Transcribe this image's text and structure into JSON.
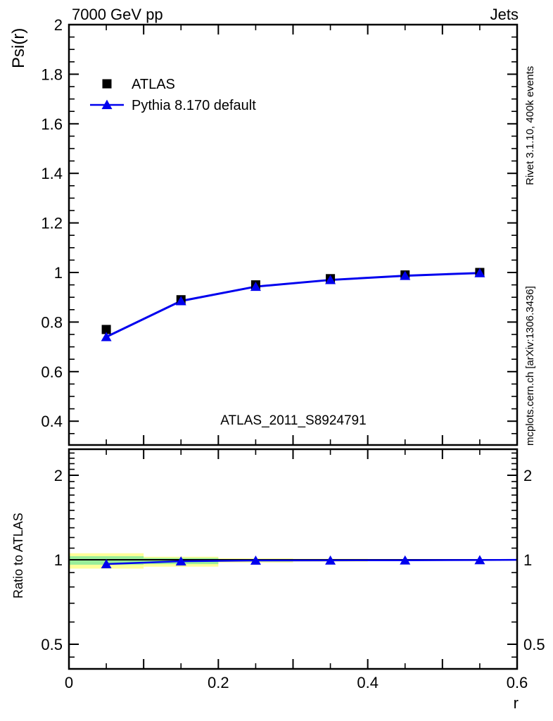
{
  "header": {
    "title_left": "7000 GeV pp",
    "title_right": "Jets"
  },
  "side_notes": {
    "rivet": "Rivet 3.1.10,  400k events",
    "mcplots": "mcplots.cern.ch [arXiv:1306.3436]"
  },
  "watermark": "ATLAS_2011_S8924791",
  "axis_labels": {
    "main_y": "Psi(r)",
    "ratio_y": "Ratio to ATLAS",
    "x": "r"
  },
  "legend": {
    "entries": [
      {
        "label": "ATLAS",
        "marker": "square",
        "color": "#000000"
      },
      {
        "label": "Pythia 8.170 default",
        "marker": "triangle-line",
        "color": "#0000ee"
      }
    ]
  },
  "colors": {
    "mc": "#0000ee",
    "data": "#000000",
    "band_outer": "#ffff99",
    "band_inner": "#99ee99",
    "ref_line": "#000000",
    "muted_text": "#8c8c8c",
    "watermark_text": "#b2b2b2"
  },
  "chart_data": [
    {
      "type": "line",
      "panel": "main",
      "title": "7000 GeV pp",
      "title_right": "Jets",
      "ylabel": "Psi(r)",
      "xlabel": "r",
      "xlim": [
        0,
        0.6
      ],
      "ylim": [
        0.3,
        2.0
      ],
      "grid": false,
      "legend_position": "top-left-inside",
      "x": [
        0.05,
        0.15,
        0.25,
        0.35,
        0.45,
        0.55
      ],
      "series": [
        {
          "name": "ATLAS",
          "marker": "square",
          "color": "#000000",
          "line": false,
          "values": [
            0.77,
            0.89,
            0.95,
            0.975,
            0.99,
            1.0
          ]
        },
        {
          "name": "Pythia 8.170 default",
          "marker": "triangle",
          "color": "#0000ee",
          "line": true,
          "values": [
            0.74,
            0.885,
            0.943,
            0.97,
            0.987,
            0.998
          ]
        }
      ],
      "yticks": {
        "labeled": [
          0.4,
          0.6,
          0.8,
          1,
          1.2,
          1.4,
          1.6,
          1.8,
          2
        ],
        "labels": [
          "0.4",
          "0.6",
          "0.8",
          "1",
          "1.2",
          "1.4",
          "1.6",
          "1.8",
          "2"
        ]
      },
      "xticks": {
        "labeled": [
          0,
          0.2,
          0.4,
          0.6
        ],
        "labels": [
          "0",
          "0.2",
          "0.4",
          "0.6"
        ]
      },
      "watermark": "ATLAS_2011_S8924791"
    },
    {
      "type": "ratio",
      "panel": "ratio",
      "ylabel": "Ratio to ATLAS",
      "xlabel": "r",
      "yscale": "log",
      "xlim": [
        0,
        0.6
      ],
      "ylim": [
        0.41,
        2.48
      ],
      "ref_value": 1,
      "x": [
        0.05,
        0.15,
        0.25,
        0.35,
        0.45,
        0.55
      ],
      "mc_ratio": [
        0.965,
        0.988,
        0.994,
        0.995,
        0.996,
        0.998
      ],
      "mc_ratio_extend": {
        "x": 0.6,
        "y": 0.999
      },
      "bands": [
        {
          "x": [
            0.0,
            0.1
          ],
          "outer": [
            0.93,
            1.055
          ],
          "inner": [
            0.96,
            1.03
          ]
        },
        {
          "x": [
            0.1,
            0.2
          ],
          "outer": [
            0.945,
            1.025
          ],
          "inner": [
            0.965,
            1.015
          ]
        },
        {
          "x": [
            0.2,
            0.3
          ],
          "outer": [
            0.978,
            1.012
          ],
          "inner": [
            0.986,
            1.006
          ]
        },
        {
          "x": [
            0.3,
            0.4
          ],
          "outer": [
            0.985,
            1.008
          ],
          "inner": [
            0.99,
            1.004
          ]
        },
        {
          "x": [
            0.4,
            0.5
          ],
          "outer": [
            0.99,
            1.006
          ],
          "inner": [
            0.993,
            1.003
          ]
        },
        {
          "x": [
            0.5,
            0.6
          ],
          "outer": [
            0.993,
            1.004
          ],
          "inner": [
            0.996,
            1.002
          ]
        }
      ],
      "yticks": {
        "labeled": [
          0.5,
          1,
          2
        ],
        "labels": [
          "0.5",
          "1",
          "2"
        ],
        "minor": [
          0.45,
          0.6,
          0.7,
          0.8,
          0.9,
          1.1,
          1.2,
          1.3,
          1.4,
          1.5,
          1.6,
          1.7,
          1.8,
          1.9,
          2.1,
          2.2,
          2.3,
          2.4
        ]
      },
      "xticks": {
        "labeled": [
          0,
          0.2,
          0.4,
          0.6
        ],
        "labels": [
          "0",
          "0.2",
          "0.4",
          "0.6"
        ]
      }
    }
  ]
}
